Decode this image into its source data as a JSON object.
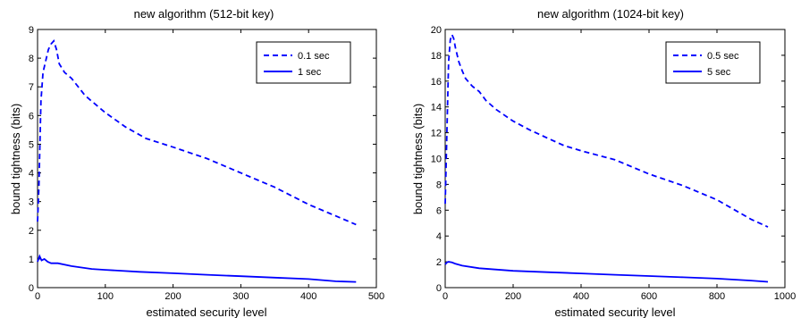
{
  "chart_data": [
    {
      "type": "line",
      "title": "new algorithm (512-bit key)",
      "xlabel": "estimated security level",
      "ylabel": "bound tightness (bits)",
      "xlim": [
        0,
        500
      ],
      "ylim": [
        0,
        9
      ],
      "xticks": [
        0,
        100,
        200,
        300,
        400,
        500
      ],
      "yticks": [
        0,
        1,
        2,
        3,
        4,
        5,
        6,
        7,
        8,
        9
      ],
      "grid": false,
      "legend": "top-right",
      "color": "#0000ff",
      "series": [
        {
          "name": "0.1 sec",
          "style": "dashed",
          "x": [
            0,
            2,
            5,
            8,
            12,
            16,
            20,
            24,
            28,
            32,
            40,
            50,
            60,
            70,
            80,
            100,
            130,
            160,
            200,
            250,
            300,
            350,
            400,
            430,
            470
          ],
          "y": [
            2.3,
            3.5,
            6.5,
            7.5,
            7.9,
            8.3,
            8.5,
            8.6,
            8.3,
            7.8,
            7.5,
            7.3,
            7.0,
            6.7,
            6.5,
            6.1,
            5.6,
            5.2,
            4.9,
            4.5,
            4.0,
            3.5,
            2.9,
            2.6,
            2.2
          ]
        },
        {
          "name": "1 sec",
          "style": "solid",
          "x": [
            0,
            3,
            6,
            10,
            15,
            20,
            30,
            50,
            80,
            100,
            150,
            200,
            250,
            300,
            350,
            400,
            440,
            470
          ],
          "y": [
            0.9,
            1.1,
            0.95,
            1.0,
            0.9,
            0.85,
            0.85,
            0.75,
            0.65,
            0.62,
            0.55,
            0.5,
            0.45,
            0.4,
            0.35,
            0.3,
            0.22,
            0.2
          ]
        }
      ]
    },
    {
      "type": "line",
      "title": "new algorithm (1024-bit key)",
      "xlabel": "estimated security level",
      "ylabel": "bound tightness (bits)",
      "xlim": [
        0,
        1000
      ],
      "ylim": [
        0,
        20
      ],
      "xticks": [
        0,
        200,
        400,
        600,
        800,
        1000
      ],
      "yticks": [
        0,
        2,
        4,
        6,
        8,
        10,
        12,
        14,
        16,
        18,
        20
      ],
      "grid": false,
      "legend": "top-right",
      "color": "#0000ff",
      "series": [
        {
          "name": "0.5 sec",
          "style": "dashed",
          "x": [
            0,
            5,
            10,
            15,
            20,
            25,
            30,
            40,
            50,
            60,
            80,
            100,
            120,
            150,
            200,
            250,
            300,
            350,
            400,
            500,
            600,
            700,
            800,
            900,
            950
          ],
          "y": [
            6.5,
            12.0,
            17.5,
            19.2,
            19.6,
            19.3,
            18.6,
            17.5,
            16.8,
            16.2,
            15.6,
            15.2,
            14.5,
            13.8,
            12.9,
            12.2,
            11.6,
            11.0,
            10.6,
            9.9,
            8.8,
            7.9,
            6.8,
            5.3,
            4.7
          ]
        },
        {
          "name": "5 sec",
          "style": "solid",
          "x": [
            0,
            5,
            10,
            20,
            30,
            50,
            100,
            200,
            300,
            400,
            500,
            600,
            700,
            800,
            900,
            950
          ],
          "y": [
            1.8,
            1.95,
            2.0,
            1.95,
            1.85,
            1.7,
            1.5,
            1.3,
            1.2,
            1.1,
            1.0,
            0.9,
            0.8,
            0.7,
            0.55,
            0.45
          ]
        }
      ]
    }
  ]
}
